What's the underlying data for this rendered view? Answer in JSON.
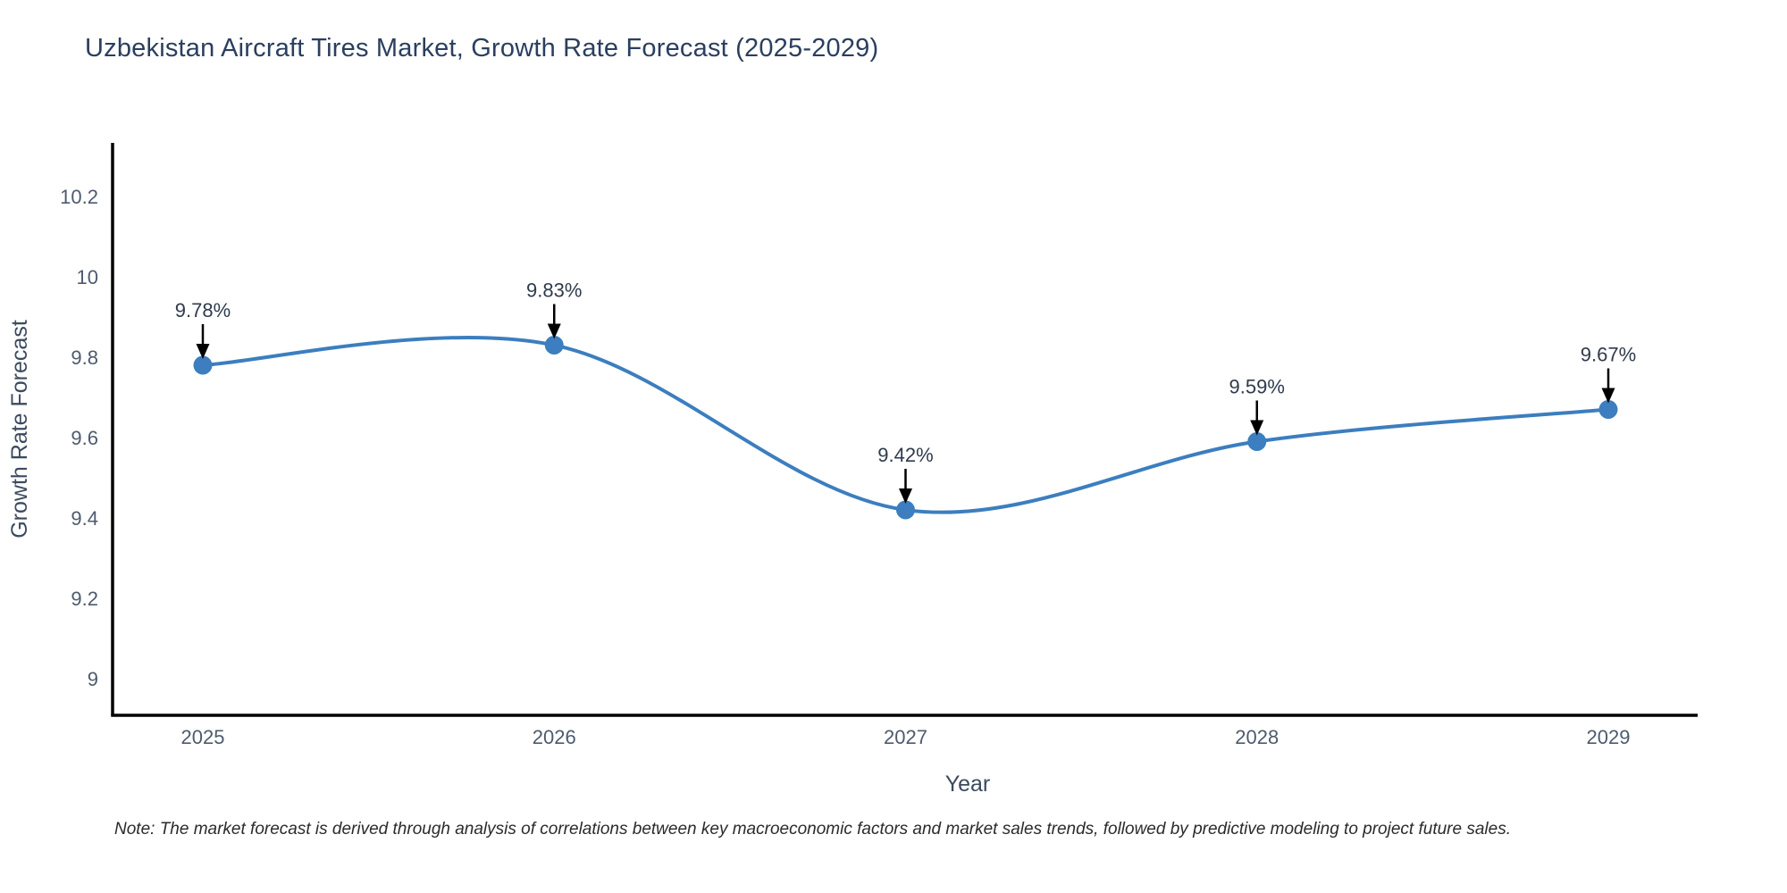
{
  "chart_data": {
    "type": "line",
    "curve": "spline",
    "title": "Uzbekistan Aircraft Tires Market, Growth Rate Forecast (2025-2029)",
    "xlabel": "Year",
    "ylabel": "Growth Rate Forecast",
    "x": [
      2025,
      2026,
      2027,
      2028,
      2029
    ],
    "x_tick_labels": [
      "2025",
      "2026",
      "2027",
      "2028",
      "2029"
    ],
    "series": [
      {
        "name": "Growth Rate Forecast",
        "values": [
          9.78,
          9.83,
          9.42,
          9.59,
          9.67
        ]
      }
    ],
    "point_labels": [
      "9.78%",
      "9.83%",
      "9.42%",
      "9.59%",
      "9.67%"
    ],
    "yticks": [
      {
        "value": 9,
        "label": "9"
      },
      {
        "value": 9.2,
        "label": "9.2"
      },
      {
        "value": 9.4,
        "label": "9.4"
      },
      {
        "value": 9.6,
        "label": "9.6"
      },
      {
        "value": 9.8,
        "label": "9.8"
      },
      {
        "value": 10,
        "label": "10"
      },
      {
        "value": 10.2,
        "label": "10.2"
      }
    ],
    "ylim": [
      8.91,
      10.33
    ],
    "xlim": [
      2024.74,
      2029.25
    ],
    "grid": false,
    "legend": "none",
    "colors": {
      "line": "#3c7ebf",
      "marker": "#3c7ebf",
      "annotation_text": "#2f3b4c",
      "annotation_arrow": "#000000",
      "axis_line": "#000000",
      "title_text": "#2a3f5f",
      "axis_title_text": "#3c4a5f",
      "tick_text": "#4d5b6e"
    },
    "note": "Note: The market forecast is derived through analysis of correlations between key macroeconomic factors and market sales trends, followed by predictive modeling to project future sales."
  }
}
